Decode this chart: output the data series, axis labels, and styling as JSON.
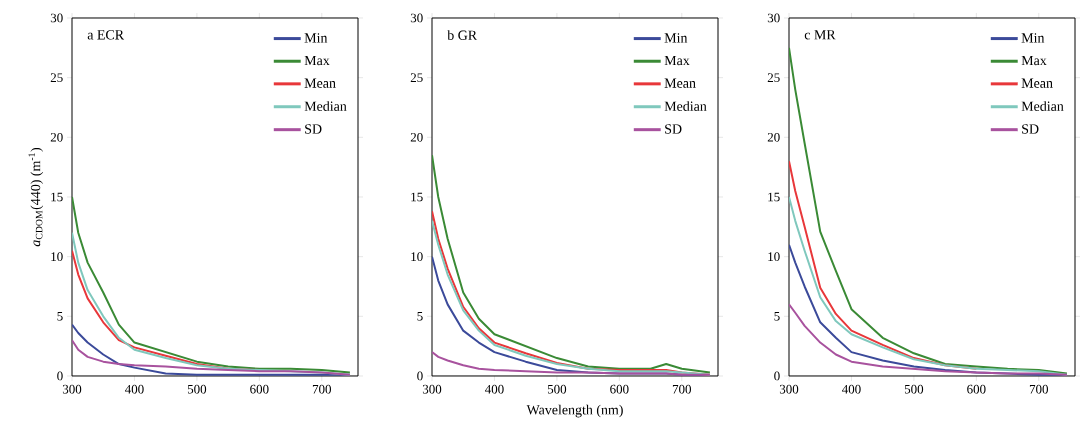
{
  "chart_data": [
    {
      "type": "line",
      "title": "a ECR",
      "ylabel": "*a*$_{CDOM}$(440) (m$^{-1}$)",
      "xlim": [
        300,
        758
      ],
      "ylim": [
        0,
        30
      ],
      "xticks": [
        300,
        400,
        500,
        600,
        700
      ],
      "yticks": [
        0,
        5,
        10,
        15,
        20,
        25,
        30
      ],
      "legend": "top right",
      "grid": false,
      "x": [
        300,
        310,
        325,
        350,
        375,
        400,
        450,
        500,
        550,
        600,
        650,
        700,
        745
      ],
      "series": [
        {
          "name": "Min",
          "color": "#3b4a9a",
          "values": [
            4.3,
            3.6,
            2.8,
            1.8,
            1.0,
            0.7,
            0.2,
            0.1,
            0.1,
            0.1,
            0.1,
            0.1,
            0.1
          ]
        },
        {
          "name": "Max",
          "color": "#3a8a35",
          "values": [
            15,
            12,
            9.5,
            7,
            4.3,
            2.8,
            2.0,
            1.2,
            0.8,
            0.6,
            0.6,
            0.5,
            0.3
          ]
        },
        {
          "name": "Mean",
          "color": "#e8373a",
          "values": [
            10.5,
            8.5,
            6.5,
            4.5,
            3.0,
            2.4,
            1.7,
            1.0,
            0.6,
            0.5,
            null,
            null,
            null
          ]
        },
        {
          "name": "Median",
          "color": "#7fc8bd",
          "values": [
            12,
            9.5,
            7.2,
            5.0,
            3.2,
            2.2,
            1.5,
            0.9,
            0.6,
            0.5,
            0.4,
            0.3,
            0.1
          ]
        },
        {
          "name": "SD",
          "color": "#a8529e",
          "values": [
            3.0,
            2.2,
            1.6,
            1.2,
            1.0,
            0.9,
            0.8,
            0.6,
            0.5,
            0.4,
            0.4,
            0.3,
            0.1
          ]
        }
      ]
    },
    {
      "type": "line",
      "title": "b GR",
      "xlabel": "Wavelength (nm)",
      "xlim": [
        300,
        758
      ],
      "ylim": [
        0,
        30
      ],
      "xticks": [
        300,
        400,
        500,
        600,
        700
      ],
      "yticks": [
        0,
        5,
        10,
        15,
        20,
        25,
        30
      ],
      "legend": "top right",
      "grid": false,
      "x": [
        300,
        310,
        325,
        350,
        375,
        400,
        450,
        500,
        550,
        600,
        650,
        675,
        700,
        745
      ],
      "series": [
        {
          "name": "Min",
          "color": "#3b4a9a",
          "values": [
            10,
            8,
            6,
            3.8,
            2.8,
            2.0,
            1.2,
            0.5,
            0.3,
            0.2,
            0.2,
            0.2,
            0.1,
            0.0
          ]
        },
        {
          "name": "Max",
          "color": "#3a8a35",
          "values": [
            18.5,
            15,
            11.5,
            7,
            4.8,
            3.5,
            2.5,
            1.5,
            0.8,
            0.6,
            0.6,
            1.0,
            0.6,
            0.3
          ]
        },
        {
          "name": "Mean",
          "color": "#e8373a",
          "values": [
            13.8,
            11.5,
            9,
            5.8,
            4,
            2.8,
            1.9,
            1.1,
            0.6,
            0.5,
            0.5,
            0.5,
            0.3,
            0.1
          ]
        },
        {
          "name": "Median",
          "color": "#7fc8bd",
          "values": [
            13,
            11,
            8.5,
            5.5,
            3.8,
            2.6,
            1.7,
            1.0,
            0.6,
            0.4,
            0.4,
            0.4,
            0.3,
            0.1
          ]
        },
        {
          "name": "SD",
          "color": "#a8529e",
          "values": [
            2.0,
            1.6,
            1.3,
            0.9,
            0.6,
            0.5,
            0.4,
            0.3,
            0.3,
            0.2,
            0.2,
            0.2,
            0.1,
            0.1
          ]
        }
      ]
    },
    {
      "type": "line",
      "title": "c MR",
      "xlim": [
        300,
        758
      ],
      "ylim": [
        0,
        30
      ],
      "xticks": [
        300,
        400,
        500,
        600,
        700
      ],
      "yticks": [
        0,
        5,
        10,
        15,
        20,
        25,
        30
      ],
      "legend": "top right",
      "grid": false,
      "x": [
        300,
        310,
        325,
        350,
        375,
        400,
        450,
        500,
        550,
        600,
        650,
        700,
        745
      ],
      "series": [
        {
          "name": "Min",
          "color": "#3b4a9a",
          "values": [
            11,
            9.5,
            7.5,
            4.5,
            3.2,
            2.0,
            1.3,
            0.8,
            0.5,
            0.3,
            0.2,
            0.1,
            0.1
          ]
        },
        {
          "name": "Max",
          "color": "#3a8a35",
          "values": [
            27.5,
            24,
            19.5,
            12.1,
            8.8,
            5.6,
            3.2,
            1.9,
            1.0,
            0.8,
            0.6,
            0.5,
            0.2
          ]
        },
        {
          "name": "Mean",
          "color": "#e8373a",
          "values": [
            18,
            15.5,
            12.5,
            7.4,
            5.2,
            3.8,
            2.6,
            1.5,
            0.9,
            0.6,
            null,
            null,
            null
          ]
        },
        {
          "name": "Median",
          "color": "#7fc8bd",
          "values": [
            15,
            13,
            10.5,
            6.6,
            4.6,
            3.5,
            2.4,
            1.4,
            0.9,
            0.6,
            0.5,
            0.4,
            0.1
          ]
        },
        {
          "name": "SD",
          "color": "#a8529e",
          "values": [
            6,
            5.3,
            4.2,
            2.8,
            1.8,
            1.2,
            0.8,
            0.6,
            0.4,
            0.3,
            0.2,
            0.2,
            0.1
          ]
        }
      ]
    }
  ]
}
